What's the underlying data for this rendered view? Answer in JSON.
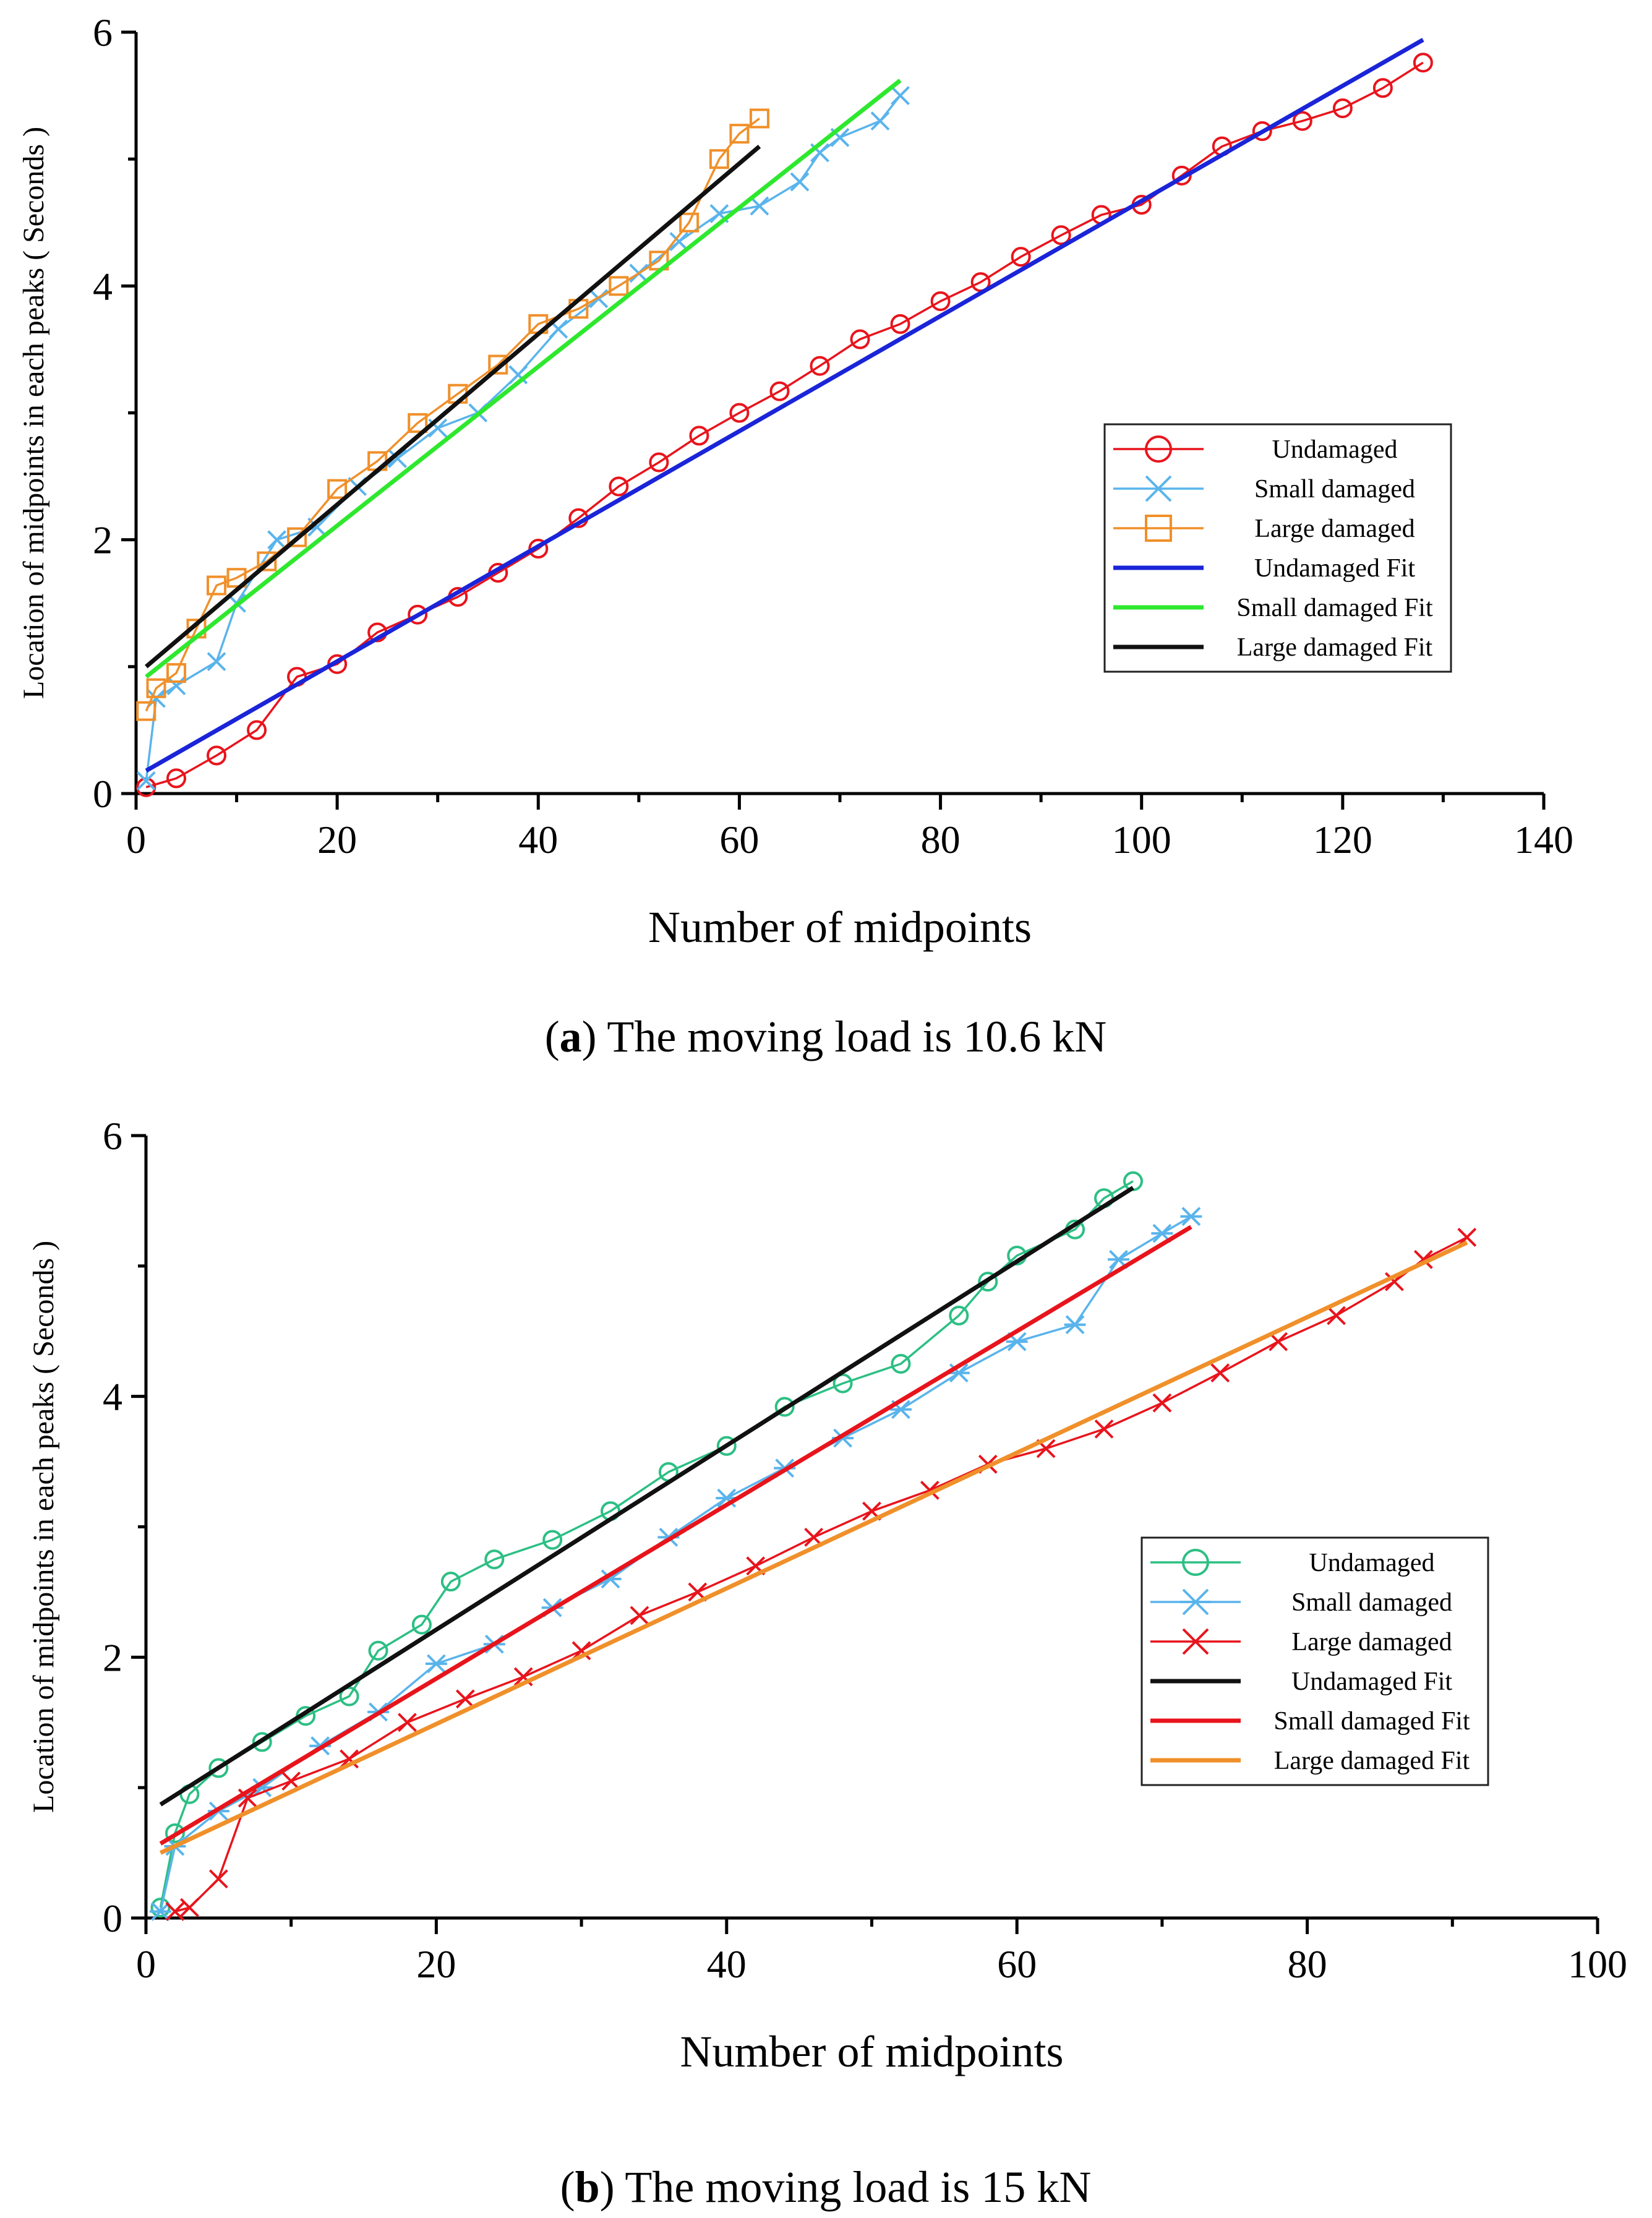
{
  "chart_data": [
    {
      "type": "line",
      "caption_label": "a",
      "caption_text": "The moving load is 10.6 kN",
      "xlabel": "Number of midpoints",
      "ylabel": "Location of midpoints in each peaks ( Seconds )",
      "xlim": [
        0,
        140
      ],
      "ylim": [
        0,
        6
      ],
      "xticks": [
        0,
        20,
        40,
        60,
        80,
        100,
        120,
        140
      ],
      "yticks": [
        0,
        2,
        4,
        6
      ],
      "legend_position": "middle-right",
      "series": [
        {
          "name": "Undamaged",
          "color": "#e8141c",
          "marker": "circle",
          "x": [
            1,
            4,
            8,
            12,
            16,
            20,
            24,
            28,
            32,
            36,
            40,
            44,
            48,
            52,
            56,
            60,
            64,
            68,
            72,
            76,
            80,
            84,
            88,
            92,
            96,
            100,
            104,
            108,
            112,
            116,
            120,
            124,
            128
          ],
          "y": [
            0.05,
            0.12,
            0.3,
            0.5,
            0.92,
            1.02,
            1.27,
            1.41,
            1.55,
            1.74,
            1.93,
            2.17,
            2.42,
            2.61,
            2.82,
            3.0,
            3.17,
            3.37,
            3.58,
            3.7,
            3.88,
            4.03,
            4.23,
            4.4,
            4.56,
            4.64,
            4.87,
            5.1,
            5.22,
            5.3,
            5.4,
            5.56,
            5.76
          ]
        },
        {
          "name": "Small damaged",
          "color": "#5ab4ec",
          "marker": "x",
          "x": [
            1,
            2,
            4,
            8,
            10,
            14,
            18,
            22,
            26,
            30,
            34,
            38,
            42,
            46,
            50,
            54,
            58,
            62,
            66,
            68,
            70,
            74,
            76
          ],
          "y": [
            0.1,
            0.75,
            0.85,
            1.04,
            1.5,
            2.0,
            2.1,
            2.42,
            2.64,
            2.88,
            3.0,
            3.3,
            3.66,
            3.9,
            4.1,
            4.35,
            4.57,
            4.63,
            4.82,
            5.05,
            5.17,
            5.3,
            5.5
          ]
        },
        {
          "name": "Large damaged",
          "color": "#f0902a",
          "marker": "square",
          "x": [
            1,
            2,
            4,
            6,
            8,
            10,
            13,
            16,
            20,
            24,
            28,
            32,
            36,
            40,
            44,
            48,
            52,
            55,
            58,
            60,
            62
          ],
          "y": [
            0.65,
            0.83,
            0.95,
            1.3,
            1.64,
            1.7,
            1.83,
            2.02,
            2.4,
            2.62,
            2.92,
            3.15,
            3.38,
            3.7,
            3.82,
            4.0,
            4.2,
            4.5,
            5.0,
            5.2,
            5.32
          ]
        },
        {
          "name": "Undamaged Fit",
          "color": "#1a24d8",
          "marker": "none",
          "x": [
            1,
            128
          ],
          "y": [
            0.18,
            5.94
          ]
        },
        {
          "name": "Small damaged Fit",
          "color": "#2ee82e",
          "marker": "none",
          "x": [
            1,
            76
          ],
          "y": [
            0.92,
            5.62
          ]
        },
        {
          "name": "Large damaged Fit",
          "color": "#111111",
          "marker": "none",
          "x": [
            1,
            62
          ],
          "y": [
            1.0,
            5.1
          ]
        }
      ]
    },
    {
      "type": "line",
      "caption_label": "b",
      "caption_text": "The moving load is 15 kN",
      "xlabel": "Number of midpoints",
      "ylabel": "Location of midpoints in each peaks ( Seconds )",
      "xlim": [
        0,
        100
      ],
      "ylim": [
        0,
        6
      ],
      "xticks": [
        0,
        20,
        40,
        60,
        80,
        100
      ],
      "yticks": [
        0,
        2,
        4,
        6
      ],
      "legend_position": "middle-right",
      "series": [
        {
          "name": "Undamaged",
          "color": "#2cbf84",
          "marker": "circle",
          "x": [
            1,
            2,
            3,
            5,
            8,
            11,
            14,
            16,
            19,
            21,
            24,
            28,
            32,
            36,
            40,
            44,
            48,
            52,
            56,
            58,
            60,
            64,
            66,
            68
          ],
          "y": [
            0.08,
            0.65,
            0.95,
            1.15,
            1.35,
            1.55,
            1.7,
            2.05,
            2.25,
            2.58,
            2.75,
            2.9,
            3.12,
            3.42,
            3.62,
            3.92,
            4.1,
            4.25,
            4.62,
            4.88,
            5.08,
            5.28,
            5.52,
            5.65
          ]
        },
        {
          "name": "Small damaged",
          "color": "#5ab4ec",
          "marker": "asterisk",
          "x": [
            1,
            2,
            5,
            8,
            12,
            16,
            20,
            24,
            28,
            32,
            36,
            40,
            44,
            48,
            52,
            56,
            60,
            64,
            67,
            70,
            72
          ],
          "y": [
            0.05,
            0.55,
            0.82,
            1.0,
            1.32,
            1.58,
            1.95,
            2.1,
            2.38,
            2.6,
            2.92,
            3.22,
            3.45,
            3.68,
            3.9,
            4.18,
            4.42,
            4.55,
            5.05,
            5.25,
            5.38
          ]
        },
        {
          "name": "Large damaged",
          "color": "#e8141c",
          "marker": "x",
          "x": [
            2,
            3,
            5,
            7,
            10,
            14,
            18,
            22,
            26,
            30,
            34,
            38,
            42,
            46,
            50,
            54,
            58,
            62,
            66,
            70,
            74,
            78,
            82,
            86,
            88,
            91
          ],
          "y": [
            0.05,
            0.08,
            0.3,
            0.92,
            1.05,
            1.22,
            1.5,
            1.68,
            1.85,
            2.05,
            2.32,
            2.5,
            2.7,
            2.92,
            3.12,
            3.28,
            3.48,
            3.6,
            3.75,
            3.95,
            4.18,
            4.42,
            4.62,
            4.88,
            5.05,
            5.22
          ]
        },
        {
          "name": "Undamaged Fit",
          "color": "#111111",
          "marker": "none",
          "x": [
            1,
            68
          ],
          "y": [
            0.87,
            5.6
          ]
        },
        {
          "name": "Small damaged Fit",
          "color": "#e8141c",
          "marker": "none",
          "x": [
            1,
            72
          ],
          "y": [
            0.57,
            5.3
          ]
        },
        {
          "name": "Large damaged Fit",
          "color": "#f0902a",
          "marker": "none",
          "x": [
            1,
            91
          ],
          "y": [
            0.5,
            5.18
          ]
        }
      ]
    }
  ]
}
